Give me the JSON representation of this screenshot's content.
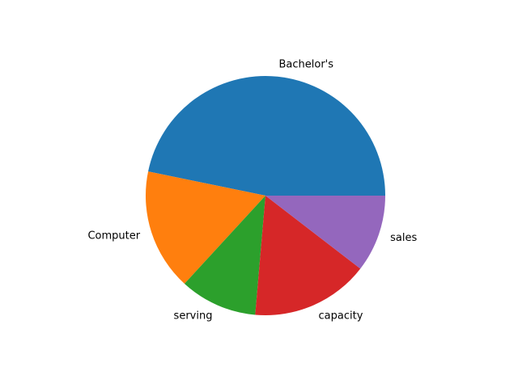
{
  "chart_data": {
    "type": "pie",
    "categories": [
      "Bachelor's",
      "Computer",
      "serving",
      "capacity",
      "sales"
    ],
    "values": [
      47,
      16.5,
      10.5,
      16,
      10.5
    ],
    "colors": [
      "#1f77b4",
      "#ff7f0e",
      "#2ca02c",
      "#d62728",
      "#9467bd"
    ],
    "start_angle_deg": 0,
    "direction": "counterclockwise",
    "title": ""
  }
}
